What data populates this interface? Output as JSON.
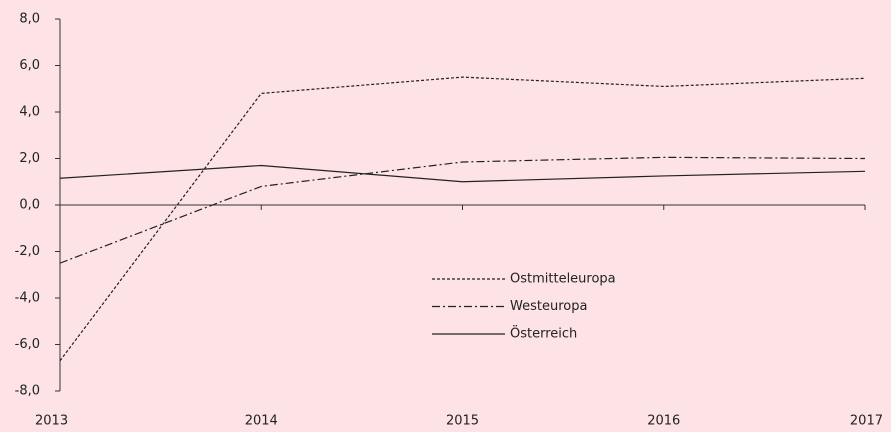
{
  "chart_data": {
    "type": "line",
    "x": [
      2013,
      2014,
      2015,
      2016,
      2017
    ],
    "xlim": [
      2013,
      2017
    ],
    "xticks": [
      2013,
      2014,
      2015,
      2016,
      2017
    ],
    "ylim": [
      -8,
      8
    ],
    "yticks": [
      {
        "value": -8,
        "label": "-8,0"
      },
      {
        "value": -6,
        "label": "-6,0"
      },
      {
        "value": -4,
        "label": "-4,0"
      },
      {
        "value": -2,
        "label": "-2,0"
      },
      {
        "value": 0,
        "label": "0,0"
      },
      {
        "value": 2,
        "label": "2,0"
      },
      {
        "value": 4,
        "label": "4,0"
      },
      {
        "value": 6,
        "label": "6,0"
      },
      {
        "value": 8,
        "label": "8,0"
      }
    ],
    "grid": false,
    "series": [
      {
        "name": "Ostmitteleuropa",
        "color": "#222222",
        "dash": "3,2",
        "values": [
          -6.7,
          4.8,
          5.5,
          5.1,
          5.45
        ]
      },
      {
        "name": "Westeuropa",
        "color": "#222222",
        "dash": "8,3,2,3",
        "values": [
          -2.5,
          0.8,
          1.85,
          2.05,
          2.0
        ]
      },
      {
        "name": "Österreich",
        "color": "#222222",
        "dash": "none",
        "values": [
          1.15,
          1.7,
          1.0,
          1.25,
          1.45
        ]
      }
    ]
  }
}
